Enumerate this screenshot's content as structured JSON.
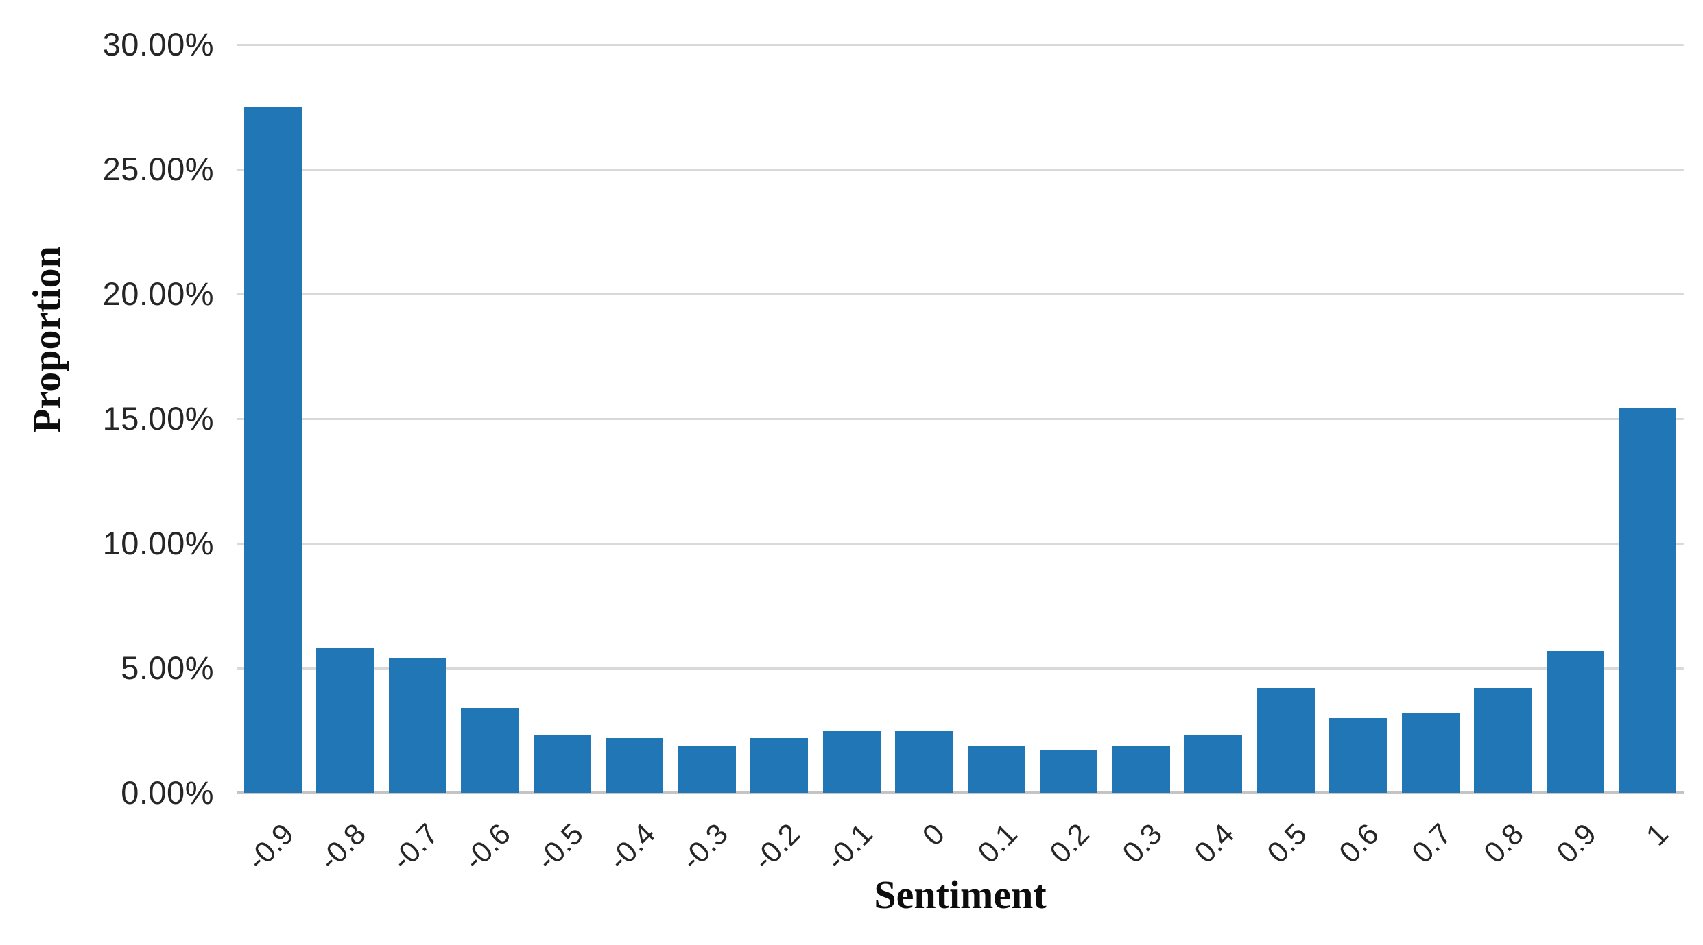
{
  "page": {
    "background_color": "#ffffff"
  },
  "chart_data": {
    "type": "bar",
    "title": "",
    "xlabel": "Sentiment",
    "ylabel": "Proportion",
    "categories": [
      "-0.9",
      "-0.8",
      "-0.7",
      "-0.6",
      "-0.5",
      "-0.4",
      "-0.3",
      "-0.2",
      "-0.1",
      "0",
      "0.1",
      "0.2",
      "0.3",
      "0.4",
      "0.5",
      "0.6",
      "0.7",
      "0.8",
      "0.9",
      "1"
    ],
    "values": [
      27.5,
      5.8,
      5.4,
      3.4,
      2.3,
      2.2,
      1.9,
      2.2,
      2.5,
      2.5,
      1.9,
      1.7,
      1.9,
      2.3,
      4.2,
      3.0,
      3.2,
      4.2,
      5.7,
      15.4
    ],
    "value_unit": "%",
    "ylim": [
      0,
      30
    ],
    "y_ticks": [
      "30.00%",
      "25.00%",
      "20.00%",
      "15.00%",
      "10.00%",
      "5.00%",
      "0.00%"
    ],
    "grid": "horizontal",
    "legend": "none",
    "bar_color": "#2176b5",
    "gridline_color": "#d9d9d9",
    "axis_line_color": "#c4c4c4",
    "tick_text_color": "#262626"
  }
}
